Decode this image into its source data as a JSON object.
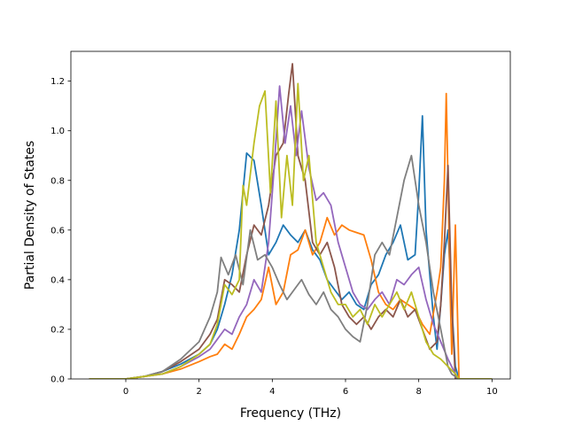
{
  "chart_data": {
    "type": "line",
    "title": "",
    "xlabel": "Frequency (THz)",
    "ylabel": "Partial Density of States",
    "xlim": [
      -1.5,
      10.5
    ],
    "ylim": [
      0.0,
      1.32
    ],
    "xticks": [
      0,
      2,
      4,
      6,
      8,
      10
    ],
    "yticks": [
      0.0,
      0.2,
      0.4,
      0.6,
      0.8,
      1.0,
      1.2
    ],
    "xtick_labels": [
      "0",
      "2",
      "4",
      "6",
      "8",
      "10"
    ],
    "ytick_labels": [
      "0.0",
      "0.2",
      "0.4",
      "0.6",
      "0.8",
      "1.0",
      "1.2"
    ],
    "grid": false,
    "legend": "none",
    "series": [
      {
        "color": "#1f77b4",
        "x": [
          -1.0,
          0.0,
          0.5,
          1.0,
          1.5,
          2.0,
          2.3,
          2.5,
          2.7,
          2.9,
          3.1,
          3.3,
          3.5,
          3.7,
          3.9,
          4.1,
          4.3,
          4.5,
          4.7,
          4.9,
          5.1,
          5.3,
          5.5,
          5.7,
          5.9,
          6.1,
          6.3,
          6.5,
          6.7,
          6.9,
          7.1,
          7.3,
          7.5,
          7.7,
          7.9,
          8.0,
          8.1,
          8.2,
          8.3,
          8.4,
          8.5,
          8.6,
          8.7,
          8.8,
          8.9,
          9.0,
          9.1,
          10.0
        ],
        "y": [
          0.0,
          0.0,
          0.01,
          0.03,
          0.06,
          0.1,
          0.14,
          0.2,
          0.3,
          0.42,
          0.6,
          0.91,
          0.88,
          0.7,
          0.5,
          0.55,
          0.62,
          0.58,
          0.55,
          0.6,
          0.52,
          0.48,
          0.4,
          0.36,
          0.32,
          0.35,
          0.3,
          0.28,
          0.38,
          0.42,
          0.5,
          0.55,
          0.62,
          0.48,
          0.5,
          0.75,
          1.06,
          0.6,
          0.42,
          0.25,
          0.12,
          0.3,
          0.5,
          0.6,
          0.3,
          0.05,
          0.0,
          0.0
        ]
      },
      {
        "color": "#ff7f0e",
        "x": [
          -1.0,
          0.0,
          0.5,
          1.0,
          1.5,
          2.0,
          2.3,
          2.5,
          2.7,
          2.9,
          3.1,
          3.3,
          3.5,
          3.7,
          3.9,
          4.1,
          4.3,
          4.5,
          4.7,
          4.9,
          5.1,
          5.3,
          5.5,
          5.7,
          5.9,
          6.1,
          6.3,
          6.5,
          6.7,
          6.9,
          7.1,
          7.3,
          7.5,
          7.7,
          7.9,
          8.1,
          8.3,
          8.5,
          8.6,
          8.7,
          8.75,
          8.8,
          8.85,
          8.9,
          9.0,
          9.1,
          10.0
        ],
        "y": [
          0.0,
          0.0,
          0.01,
          0.02,
          0.04,
          0.07,
          0.09,
          0.1,
          0.14,
          0.12,
          0.18,
          0.25,
          0.28,
          0.32,
          0.45,
          0.3,
          0.35,
          0.5,
          0.52,
          0.6,
          0.5,
          0.55,
          0.65,
          0.58,
          0.62,
          0.6,
          0.59,
          0.58,
          0.48,
          0.35,
          0.3,
          0.28,
          0.32,
          0.3,
          0.28,
          0.22,
          0.18,
          0.35,
          0.45,
          0.8,
          1.15,
          0.8,
          0.4,
          0.1,
          0.62,
          0.0,
          0.0
        ]
      },
      {
        "color": "#8c564b",
        "x": [
          -1.0,
          0.0,
          0.5,
          1.0,
          1.5,
          2.0,
          2.3,
          2.5,
          2.7,
          2.9,
          3.1,
          3.3,
          3.5,
          3.7,
          3.9,
          4.1,
          4.3,
          4.45,
          4.55,
          4.7,
          4.9,
          5.1,
          5.3,
          5.5,
          5.7,
          5.9,
          6.1,
          6.3,
          6.5,
          6.7,
          6.9,
          7.1,
          7.3,
          7.5,
          7.7,
          7.9,
          8.1,
          8.3,
          8.5,
          8.6,
          8.7,
          8.8,
          8.9,
          9.0,
          9.1,
          10.0
        ],
        "y": [
          0.0,
          0.0,
          0.01,
          0.03,
          0.07,
          0.12,
          0.18,
          0.24,
          0.4,
          0.38,
          0.35,
          0.5,
          0.62,
          0.58,
          0.7,
          0.9,
          0.95,
          1.15,
          1.27,
          0.9,
          0.8,
          0.55,
          0.5,
          0.55,
          0.45,
          0.3,
          0.25,
          0.22,
          0.25,
          0.2,
          0.25,
          0.28,
          0.25,
          0.32,
          0.25,
          0.28,
          0.2,
          0.12,
          0.15,
          0.3,
          0.55,
          0.86,
          0.3,
          0.0,
          0.0,
          0.0
        ]
      },
      {
        "color": "#9467bd",
        "x": [
          -1.0,
          0.0,
          0.5,
          1.0,
          1.5,
          2.0,
          2.3,
          2.5,
          2.7,
          2.9,
          3.1,
          3.3,
          3.5,
          3.7,
          3.9,
          4.05,
          4.2,
          4.35,
          4.5,
          4.65,
          4.8,
          5.0,
          5.2,
          5.4,
          5.6,
          5.8,
          6.0,
          6.2,
          6.4,
          6.6,
          6.8,
          7.0,
          7.2,
          7.4,
          7.6,
          7.8,
          8.0,
          8.2,
          8.4,
          8.6,
          8.8,
          9.0,
          9.1,
          10.0
        ],
        "y": [
          0.0,
          0.0,
          0.01,
          0.02,
          0.05,
          0.09,
          0.12,
          0.16,
          0.2,
          0.18,
          0.25,
          0.3,
          0.4,
          0.35,
          0.55,
          0.85,
          1.18,
          0.95,
          1.1,
          0.9,
          1.08,
          0.85,
          0.72,
          0.75,
          0.7,
          0.55,
          0.45,
          0.35,
          0.3,
          0.28,
          0.32,
          0.35,
          0.3,
          0.4,
          0.38,
          0.42,
          0.45,
          0.32,
          0.22,
          0.15,
          0.08,
          0.02,
          0.0,
          0.0
        ]
      },
      {
        "color": "#7f7f7f",
        "x": [
          -1.0,
          0.0,
          0.5,
          1.0,
          1.5,
          2.0,
          2.3,
          2.5,
          2.6,
          2.8,
          3.0,
          3.2,
          3.4,
          3.6,
          3.8,
          4.0,
          4.2,
          4.4,
          4.6,
          4.8,
          5.0,
          5.2,
          5.4,
          5.6,
          5.8,
          6.0,
          6.2,
          6.4,
          6.6,
          6.8,
          7.0,
          7.2,
          7.4,
          7.6,
          7.8,
          8.0,
          8.2,
          8.4,
          8.6,
          8.8,
          8.9,
          9.0,
          9.1,
          10.0
        ],
        "y": [
          0.0,
          0.0,
          0.01,
          0.03,
          0.08,
          0.15,
          0.25,
          0.35,
          0.49,
          0.42,
          0.5,
          0.38,
          0.6,
          0.48,
          0.5,
          0.45,
          0.38,
          0.32,
          0.36,
          0.4,
          0.34,
          0.3,
          0.35,
          0.28,
          0.25,
          0.2,
          0.17,
          0.15,
          0.3,
          0.5,
          0.55,
          0.5,
          0.65,
          0.8,
          0.9,
          0.7,
          0.55,
          0.35,
          0.2,
          0.05,
          0.02,
          0.01,
          0.0,
          0.0
        ]
      },
      {
        "color": "#bcbd22",
        "x": [
          -1.0,
          0.0,
          0.5,
          1.0,
          1.5,
          2.0,
          2.3,
          2.5,
          2.7,
          2.9,
          3.1,
          3.2,
          3.3,
          3.5,
          3.65,
          3.8,
          3.95,
          4.1,
          4.25,
          4.4,
          4.55,
          4.7,
          4.85,
          5.0,
          5.2,
          5.4,
          5.6,
          5.8,
          6.0,
          6.2,
          6.4,
          6.6,
          6.8,
          7.0,
          7.2,
          7.4,
          7.6,
          7.8,
          8.0,
          8.2,
          8.4,
          8.6,
          8.8,
          9.0,
          9.1,
          10.0
        ],
        "y": [
          0.0,
          0.0,
          0.01,
          0.02,
          0.05,
          0.1,
          0.14,
          0.22,
          0.38,
          0.34,
          0.4,
          0.78,
          0.7,
          0.95,
          1.1,
          1.16,
          0.75,
          1.12,
          0.65,
          0.9,
          0.7,
          1.19,
          0.8,
          0.9,
          0.55,
          0.45,
          0.35,
          0.3,
          0.3,
          0.25,
          0.28,
          0.22,
          0.3,
          0.25,
          0.3,
          0.35,
          0.28,
          0.35,
          0.25,
          0.15,
          0.1,
          0.08,
          0.05,
          0.02,
          0.0,
          0.0
        ]
      }
    ]
  }
}
